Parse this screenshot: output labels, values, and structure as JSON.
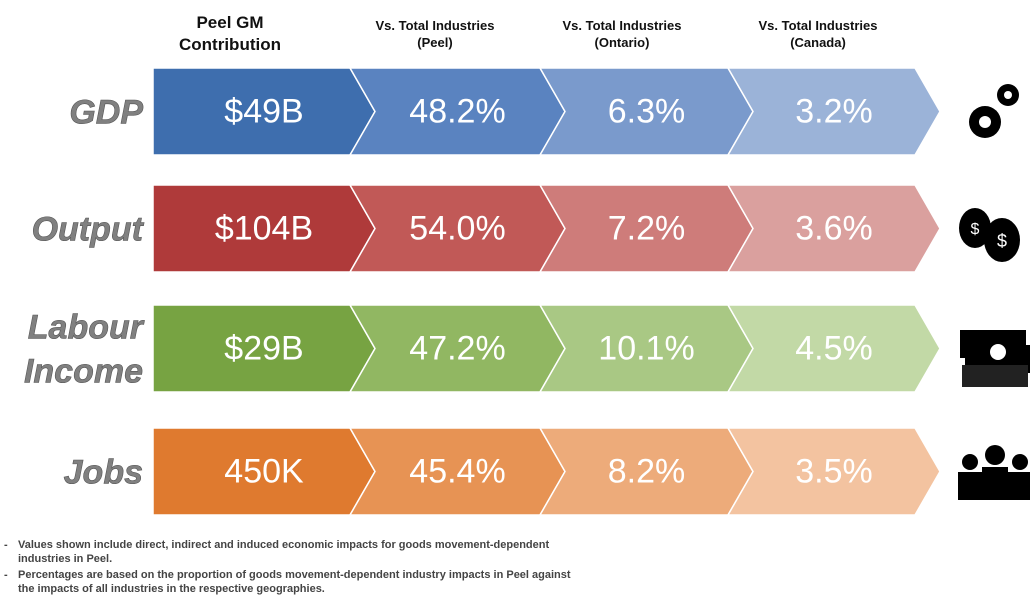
{
  "headers": [
    {
      "lines": [
        "Peel GM",
        "Contribution"
      ]
    },
    {
      "lines": [
        "Vs. Total Industries",
        "(Peel)"
      ]
    },
    {
      "lines": [
        "Vs. Total Industries",
        "(Ontario)"
      ]
    },
    {
      "lines": [
        "Vs. Total Industries",
        "(Canada)"
      ]
    }
  ],
  "rows": [
    {
      "label": [
        "GDP"
      ],
      "cells": [
        "$49B",
        "48.2%",
        "6.3%",
        "3.2%"
      ],
      "colors": [
        "#3e6eae",
        "#5a83c0",
        "#7a9acc",
        "#9bb3d8"
      ]
    },
    {
      "label": [
        "Output"
      ],
      "cells": [
        "$104B",
        "54.0%",
        "7.2%",
        "3.6%"
      ],
      "colors": [
        "#af3a3a",
        "#c15957",
        "#ce7c7a",
        "#daa09e"
      ]
    },
    {
      "label": [
        "Labour",
        "Income"
      ],
      "cells": [
        "$29B",
        "47.2%",
        "10.1%",
        "4.5%"
      ],
      "colors": [
        "#77a342",
        "#91b762",
        "#a9c884",
        "#c2d9a6"
      ]
    },
    {
      "label": [
        "Jobs"
      ],
      "cells": [
        "450K",
        "45.4%",
        "8.2%",
        "3.5%"
      ],
      "colors": [
        "#df7a2f",
        "#e79354",
        "#edab7a",
        "#f3c3a0"
      ]
    }
  ],
  "notes": [
    [
      "Values shown include direct, indirect and induced economic impacts for goods movement-dependent",
      "industries in Peel."
    ],
    [
      "Percentages are based on the proportion of goods movement-dependent industry impacts in Peel against",
      "the impacts of all industries in the respective geographies."
    ]
  ]
}
